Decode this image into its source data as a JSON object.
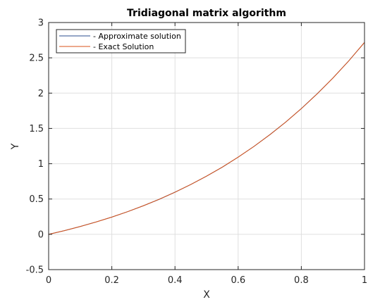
{
  "chart_data": {
    "type": "line",
    "title": "Tridiagonal matrix algorithm",
    "xlabel": "X",
    "ylabel": "Y",
    "xlim": [
      0,
      1
    ],
    "ylim": [
      -0.5,
      3
    ],
    "xticks": [
      0,
      0.2,
      0.4,
      0.6,
      0.8,
      1
    ],
    "yticks": [
      -0.5,
      0,
      0.5,
      1,
      1.5,
      2,
      2.5,
      3
    ],
    "xtick_labels": [
      "0",
      "0.2",
      "0.4",
      "0.6",
      "0.8",
      "1"
    ],
    "ytick_labels": [
      "-0.5",
      "0",
      "0.5",
      "1",
      "1.5",
      "2",
      "2.5",
      "3"
    ],
    "grid": true,
    "legend_position": "top-left",
    "series": [
      {
        "name": "- Approximate solution",
        "color": "#2a4d8f",
        "x": [
          0,
          0.05,
          0.1,
          0.15,
          0.2,
          0.25,
          0.3,
          0.35,
          0.4,
          0.45,
          0.5,
          0.55,
          0.6,
          0.65,
          0.7,
          0.75,
          0.8,
          0.85,
          0.9,
          0.95,
          1
        ],
        "y": [
          0,
          0.052,
          0.111,
          0.175,
          0.244,
          0.321,
          0.405,
          0.496,
          0.597,
          0.706,
          0.824,
          0.952,
          1.093,
          1.245,
          1.41,
          1.588,
          1.781,
          1.99,
          2.214,
          2.456,
          2.718
        ]
      },
      {
        "name": "- Exact Solution",
        "color": "#d95319",
        "x": [
          0,
          0.05,
          0.1,
          0.15,
          0.2,
          0.25,
          0.3,
          0.35,
          0.4,
          0.45,
          0.5,
          0.55,
          0.6,
          0.65,
          0.7,
          0.75,
          0.8,
          0.85,
          0.9,
          0.95,
          1
        ],
        "y": [
          0,
          0.0525,
          0.1105,
          0.1742,
          0.2443,
          0.321,
          0.405,
          0.4967,
          0.5967,
          0.7056,
          0.8244,
          0.9531,
          1.0932,
          1.2452,
          1.4098,
          1.5877,
          1.7804,
          1.9887,
          2.2136,
          2.4561,
          2.7183
        ]
      }
    ]
  }
}
